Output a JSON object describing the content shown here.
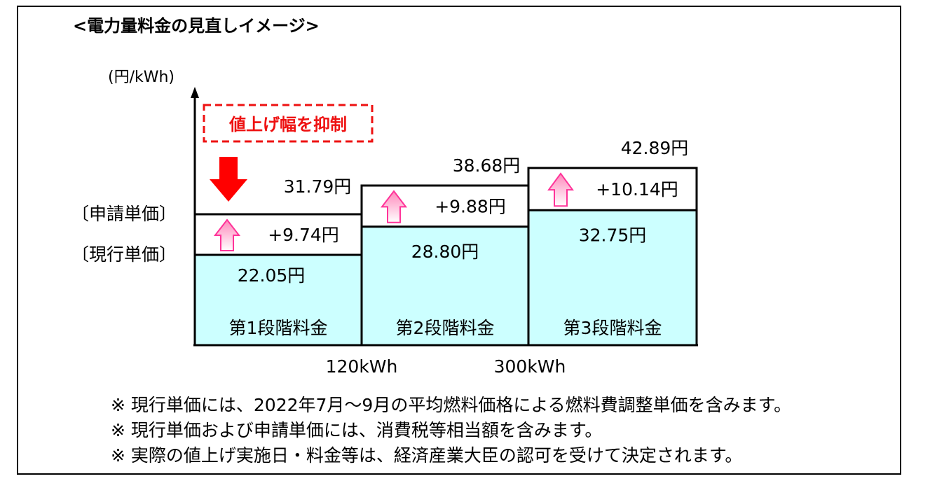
{
  "chart_data": {
    "type": "bar",
    "title": "<電力量料金の見直しイメージ>",
    "ylabel": "(円/kWh)",
    "y_markers": [
      "〔申請単価〕",
      "〔現行単価〕"
    ],
    "x_breakpoints": [
      "120kWh",
      "300kWh"
    ],
    "ylim": [
      15,
      45
    ],
    "tiers": [
      {
        "name": "第1段階料金",
        "current": 22.05,
        "applied": 31.79,
        "increase": 9.74,
        "current_label": "22.05円",
        "applied_label": "31.79円",
        "increase_label": "+9.74円"
      },
      {
        "name": "第2段階料金",
        "current": 28.8,
        "applied": 38.68,
        "increase": 9.88,
        "current_label": "28.80円",
        "applied_label": "38.68円",
        "increase_label": "+9.88円"
      },
      {
        "name": "第3段階料金",
        "current": 32.75,
        "applied": 42.89,
        "increase": 10.14,
        "current_label": "32.75円",
        "applied_label": "42.89円",
        "increase_label": "+10.14円"
      }
    ],
    "annotation": "値上げ幅を抑制"
  },
  "colors": {
    "current_fill": "#ccffff",
    "increase_arrow": "#ff99cc",
    "annotation": "#ee1111",
    "down_arrow": "#ff0000"
  },
  "notes": [
    "※ 現行単価には、2022年7月～9月の平均燃料価格による燃料費調整単価を含みます。",
    "※ 現行単価および申請単価には、消費税等相当額を含みます。",
    "※ 実際の値上げ実施日・料金等は、経済産業大臣の認可を受けて決定されます。"
  ]
}
